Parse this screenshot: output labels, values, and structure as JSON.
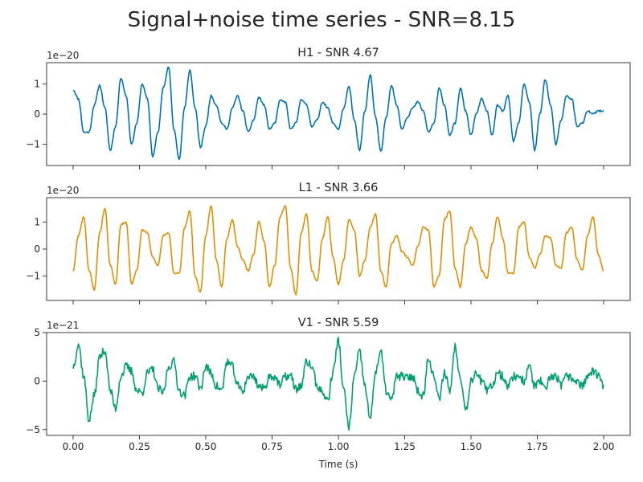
{
  "figure": {
    "suptitle": "Signal+noise time series - SNR=8.15",
    "xlabel": "Time (s)"
  },
  "chart_data": [
    {
      "type": "line",
      "title": "H1 - SNR 4.67",
      "color": "#0072b2",
      "offset_text": "1e−20",
      "xlim": [
        -0.1,
        2.1
      ],
      "ylim": [
        -1.7,
        1.7
      ],
      "yticks": [
        -1,
        0,
        1
      ],
      "yticklabels": [
        "−1",
        "0",
        "1"
      ],
      "show_xticklabels": false,
      "noise": 0.03,
      "seed": 11,
      "series": [
        {
          "x": [
            0.0,
            0.02,
            0.04,
            0.06,
            0.08,
            0.1,
            0.12,
            0.14,
            0.16,
            0.18,
            0.2,
            0.22,
            0.24,
            0.26,
            0.28,
            0.3,
            0.32,
            0.34,
            0.36,
            0.38,
            0.4,
            0.42,
            0.44,
            0.46,
            0.48,
            0.5,
            0.52,
            0.54,
            0.56,
            0.58,
            0.6,
            0.62,
            0.64,
            0.66,
            0.68,
            0.7,
            0.72,
            0.74,
            0.76,
            0.78,
            0.8,
            0.82,
            0.84,
            0.86,
            0.88,
            0.9,
            0.92,
            0.94,
            0.96,
            0.98,
            1.0,
            1.02,
            1.04,
            1.06,
            1.08,
            1.1,
            1.12,
            1.14,
            1.16,
            1.18,
            1.2,
            1.22,
            1.24,
            1.26,
            1.28,
            1.3,
            1.32,
            1.34,
            1.36,
            1.38,
            1.4,
            1.42,
            1.44,
            1.46,
            1.48,
            1.5,
            1.52,
            1.54,
            1.56,
            1.58,
            1.6,
            1.62,
            1.64,
            1.66,
            1.68,
            1.7,
            1.72,
            1.74,
            1.76,
            1.78,
            1.8,
            1.82,
            1.84,
            1.86,
            1.88,
            1.9,
            1.92,
            1.94,
            1.96,
            1.98,
            2.0
          ],
          "y": [
            0.8,
            0.5,
            -0.6,
            -0.6,
            0.3,
            0.95,
            0.2,
            -1.2,
            -0.4,
            1.2,
            0.6,
            -1.0,
            -0.3,
            1.0,
            0.5,
            -1.4,
            -0.6,
            0.9,
            1.55,
            -0.5,
            -1.5,
            0.2,
            1.45,
            0.2,
            -1.1,
            -0.4,
            0.6,
            0.3,
            -0.3,
            -0.5,
            0.2,
            0.6,
            0.1,
            -0.6,
            -0.2,
            0.55,
            0.3,
            -0.5,
            -0.3,
            0.45,
            0.4,
            -0.5,
            -0.3,
            0.5,
            0.3,
            -0.4,
            -0.2,
            0.4,
            0.2,
            -0.3,
            -0.5,
            0.2,
            0.9,
            -0.2,
            -1.2,
            0.1,
            1.3,
            -0.1,
            -1.25,
            -0.1,
            0.95,
            0.3,
            -0.5,
            -0.1,
            0.2,
            0.4,
            0.1,
            -0.6,
            -0.3,
            0.85,
            0.3,
            -0.7,
            -0.3,
            0.85,
            0.1,
            -0.7,
            0.0,
            0.5,
            0.1,
            -0.7,
            0.3,
            0.1,
            0.6,
            -0.9,
            -0.3,
            1.0,
            0.4,
            -1.2,
            0.0,
            1.15,
            0.3,
            -1.0,
            -0.2,
            0.6,
            0.5,
            -0.4,
            -0.3,
            0.1,
            0.0,
            0.1,
            0.1
          ]
        }
      ]
    },
    {
      "type": "line",
      "title": "L1 - SNR 3.66",
      "color": "#de8f05",
      "offset_text": "1e−20",
      "xlim": [
        -0.1,
        2.1
      ],
      "ylim": [
        -1.9,
        1.9
      ],
      "yticks": [
        -1,
        0,
        1
      ],
      "yticklabels": [
        "−1",
        "0",
        "1"
      ],
      "show_xticklabels": false,
      "noise": 0.03,
      "seed": 23,
      "series": [
        {
          "x": [
            0.0,
            0.02,
            0.04,
            0.06,
            0.08,
            0.1,
            0.12,
            0.14,
            0.16,
            0.18,
            0.2,
            0.22,
            0.24,
            0.26,
            0.28,
            0.3,
            0.32,
            0.34,
            0.36,
            0.38,
            0.4,
            0.42,
            0.44,
            0.46,
            0.48,
            0.5,
            0.52,
            0.54,
            0.56,
            0.58,
            0.6,
            0.62,
            0.64,
            0.66,
            0.68,
            0.7,
            0.72,
            0.74,
            0.76,
            0.78,
            0.8,
            0.82,
            0.84,
            0.86,
            0.88,
            0.9,
            0.92,
            0.94,
            0.96,
            0.98,
            1.0,
            1.02,
            1.04,
            1.06,
            1.08,
            1.1,
            1.12,
            1.14,
            1.16,
            1.18,
            1.2,
            1.22,
            1.24,
            1.26,
            1.28,
            1.3,
            1.32,
            1.34,
            1.36,
            1.38,
            1.4,
            1.42,
            1.44,
            1.46,
            1.48,
            1.5,
            1.52,
            1.54,
            1.56,
            1.58,
            1.6,
            1.62,
            1.64,
            1.66,
            1.68,
            1.7,
            1.72,
            1.74,
            1.76,
            1.78,
            1.8,
            1.82,
            1.84,
            1.86,
            1.88,
            1.9,
            1.92,
            1.94,
            1.96,
            1.98,
            2.0
          ],
          "y": [
            -0.8,
            0.5,
            1.2,
            -0.8,
            -1.5,
            0.6,
            1.5,
            -0.6,
            -1.3,
            0.9,
            1.0,
            -1.3,
            -0.8,
            0.7,
            0.6,
            -0.3,
            -0.6,
            0.5,
            0.6,
            -0.9,
            -0.9,
            0.8,
            1.4,
            -1.0,
            -1.6,
            0.5,
            1.6,
            -0.4,
            -1.4,
            0.4,
            1.1,
            0.1,
            -0.4,
            -0.8,
            -0.2,
            1.0,
            0.3,
            -1.4,
            -0.6,
            1.2,
            1.6,
            -0.7,
            -1.7,
            0.6,
            1.3,
            -0.8,
            -1.2,
            0.4,
            1.2,
            -0.3,
            -1.3,
            -0.4,
            1.1,
            0.7,
            -1.0,
            -0.4,
            0.8,
            1.3,
            -0.8,
            -1.4,
            0.2,
            0.5,
            -0.1,
            -0.3,
            -0.6,
            0.1,
            0.8,
            0.7,
            -1.4,
            -1.0,
            1.1,
            1.4,
            -0.7,
            -1.4,
            0.2,
            0.8,
            0.4,
            -0.8,
            -1.1,
            0.2,
            1.2,
            0.4,
            -0.9,
            -0.9,
            0.8,
            1.0,
            -0.3,
            -0.7,
            -0.2,
            0.5,
            0.4,
            -0.6,
            -0.7,
            0.6,
            0.8,
            -0.4,
            -0.8,
            0.5,
            1.2,
            -0.2,
            -0.8
          ]
        }
      ]
    },
    {
      "type": "line",
      "title": "V1 - SNR 5.59",
      "color": "#029e73",
      "offset_text": "1e−21",
      "xlim": [
        -0.1,
        2.1
      ],
      "ylim": [
        -5.6,
        5.0
      ],
      "yticks": [
        -5,
        0,
        5
      ],
      "yticklabels": [
        "−5",
        "0",
        "5"
      ],
      "show_xticklabels": true,
      "xticks": [
        0.0,
        0.25,
        0.5,
        0.75,
        1.0,
        1.25,
        1.5,
        1.75,
        2.0
      ],
      "xticklabels": [
        "0.00",
        "0.25",
        "0.50",
        "0.75",
        "1.00",
        "1.25",
        "1.50",
        "1.75",
        "2.00"
      ],
      "noise": 0.45,
      "seed": 37,
      "series": [
        {
          "x": [
            0.0,
            0.02,
            0.04,
            0.06,
            0.08,
            0.1,
            0.12,
            0.14,
            0.16,
            0.18,
            0.2,
            0.22,
            0.24,
            0.26,
            0.28,
            0.3,
            0.32,
            0.34,
            0.36,
            0.38,
            0.4,
            0.42,
            0.44,
            0.46,
            0.48,
            0.5,
            0.52,
            0.54,
            0.56,
            0.58,
            0.6,
            0.62,
            0.64,
            0.66,
            0.68,
            0.7,
            0.72,
            0.74,
            0.76,
            0.78,
            0.8,
            0.82,
            0.84,
            0.86,
            0.88,
            0.9,
            0.92,
            0.94,
            0.96,
            0.98,
            1.0,
            1.02,
            1.04,
            1.06,
            1.08,
            1.1,
            1.12,
            1.14,
            1.16,
            1.18,
            1.2,
            1.22,
            1.24,
            1.26,
            1.28,
            1.3,
            1.32,
            1.34,
            1.36,
            1.38,
            1.4,
            1.42,
            1.44,
            1.46,
            1.48,
            1.5,
            1.52,
            1.54,
            1.56,
            1.58,
            1.6,
            1.62,
            1.64,
            1.66,
            1.68,
            1.7,
            1.72,
            1.74,
            1.76,
            1.78,
            1.8,
            1.82,
            1.84,
            1.86,
            1.88,
            1.9,
            1.92,
            1.94,
            1.96,
            1.98,
            2.0
          ],
          "y": [
            1.5,
            3.8,
            0.5,
            -4.0,
            -1.5,
            2.5,
            3.2,
            -1.0,
            -2.8,
            0.5,
            1.5,
            1.0,
            -1.0,
            -1.2,
            0.8,
            1.2,
            -0.8,
            -1.2,
            1.5,
            2.0,
            -1.0,
            -1.5,
            0.5,
            0.5,
            -0.8,
            1.5,
            0.8,
            -0.5,
            -1.0,
            2.0,
            1.5,
            -0.5,
            -1.0,
            0.5,
            0.5,
            -0.5,
            -0.8,
            0.5,
            0.5,
            -0.5,
            0.5,
            0.5,
            -0.8,
            -0.5,
            2.0,
            1.5,
            -0.5,
            -1.2,
            -2.0,
            1.0,
            4.2,
            -1.0,
            -4.8,
            0.5,
            3.0,
            -0.5,
            -4.0,
            1.0,
            3.0,
            -1.0,
            -2.0,
            0.5,
            0.5,
            0.3,
            0.5,
            -1.0,
            -1.5,
            2.5,
            0.5,
            -2.0,
            1.0,
            -1.0,
            3.5,
            0.5,
            -3.0,
            0.0,
            1.0,
            0.0,
            -1.0,
            -0.5,
            1.0,
            0.5,
            -0.5,
            0.5,
            0.5,
            0.0,
            1.5,
            -0.5,
            0.0,
            -1.0,
            0.5,
            0.5,
            -0.5,
            0.5,
            0.3,
            0.0,
            -0.5,
            0.5,
            1.0,
            0.5,
            -0.5
          ]
        }
      ]
    }
  ]
}
